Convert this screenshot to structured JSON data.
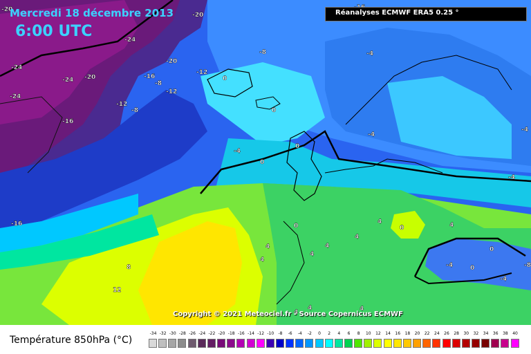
{
  "header": {
    "date": "Mercredi 18 décembre 2013",
    "time": "6:00 UTC",
    "source": "Réanalyses ECMWF ERA5 0.25 °"
  },
  "copyright": "Copyright © 2021 Meteociel.fr - Source Copernicus ECMWF",
  "legend": {
    "title": "Température 850hPa (°C)",
    "scale": [
      {
        "label": "-34",
        "color": "#d9d9d9"
      },
      {
        "label": "-32",
        "color": "#bfbfbf"
      },
      {
        "label": "-30",
        "color": "#a6a6a6"
      },
      {
        "label": "-28",
        "color": "#8c8c8c"
      },
      {
        "label": "-26",
        "color": "#6e5a6e"
      },
      {
        "label": "-24",
        "color": "#5a2a5a"
      },
      {
        "label": "-22",
        "color": "#641e64"
      },
      {
        "label": "-20",
        "color": "#780a78"
      },
      {
        "label": "-18",
        "color": "#8c0a8c"
      },
      {
        "label": "-16",
        "color": "#b400b4"
      },
      {
        "label": "-14",
        "color": "#d200d2"
      },
      {
        "label": "-12",
        "color": "#ff00ff"
      },
      {
        "label": "-10",
        "color": "#3c00b4"
      },
      {
        "label": "-8",
        "color": "#0000c8"
      },
      {
        "label": "-6",
        "color": "#0032ff"
      },
      {
        "label": "-4",
        "color": "#0064ff"
      },
      {
        "label": "-2",
        "color": "#0096ff"
      },
      {
        "label": "0",
        "color": "#00c8ff"
      },
      {
        "label": "2",
        "color": "#00ffff"
      },
      {
        "label": "4",
        "color": "#00e6a0"
      },
      {
        "label": "6",
        "color": "#00d250"
      },
      {
        "label": "8",
        "color": "#50e600"
      },
      {
        "label": "10",
        "color": "#a0f000"
      },
      {
        "label": "12",
        "color": "#dcff00"
      },
      {
        "label": "14",
        "color": "#ffff00"
      },
      {
        "label": "16",
        "color": "#ffe600"
      },
      {
        "label": "18",
        "color": "#ffc800"
      },
      {
        "label": "20",
        "color": "#ffa000"
      },
      {
        "label": "22",
        "color": "#ff6400"
      },
      {
        "label": "24",
        "color": "#ff3200"
      },
      {
        "label": "26",
        "color": "#ff0000"
      },
      {
        "label": "28",
        "color": "#dc0000"
      },
      {
        "label": "30",
        "color": "#b40000"
      },
      {
        "label": "32",
        "color": "#960000"
      },
      {
        "label": "34",
        "color": "#780000"
      },
      {
        "label": "36",
        "color": "#a00050"
      },
      {
        "label": "38",
        "color": "#c8008c"
      },
      {
        "label": "40",
        "color": "#ff00ff"
      }
    ]
  },
  "map": {
    "contour_labels": [
      {
        "text": "-20"
      },
      {
        "text": "-20"
      },
      {
        "text": "-24"
      },
      {
        "text": "-24"
      },
      {
        "text": "-24"
      },
      {
        "text": "-20"
      },
      {
        "text": "-24"
      },
      {
        "text": "-20"
      },
      {
        "text": "-16"
      },
      {
        "text": "-8"
      },
      {
        "text": "-12"
      },
      {
        "text": "-12"
      },
      {
        "text": "-12"
      },
      {
        "text": "-8"
      },
      {
        "text": "-16"
      },
      {
        "text": "-16"
      },
      {
        "text": "-8"
      },
      {
        "text": "-4"
      },
      {
        "text": "0"
      },
      {
        "text": "0"
      },
      {
        "text": "-4"
      },
      {
        "text": "-4"
      },
      {
        "text": "0"
      },
      {
        "text": "0"
      },
      {
        "text": "-4"
      },
      {
        "text": "-4"
      },
      {
        "text": "-16"
      },
      {
        "text": "8"
      },
      {
        "text": "12"
      },
      {
        "text": "0"
      },
      {
        "text": "4"
      },
      {
        "text": "4"
      },
      {
        "text": "4"
      },
      {
        "text": "4"
      },
      {
        "text": "4"
      },
      {
        "text": "4"
      },
      {
        "text": "4"
      },
      {
        "text": "0"
      },
      {
        "text": "0"
      },
      {
        "text": "-4"
      },
      {
        "text": "-4"
      },
      {
        "text": "-8"
      },
      {
        "text": "0"
      },
      {
        "text": "4"
      },
      {
        "text": "4"
      },
      {
        "text": "4"
      }
    ]
  }
}
